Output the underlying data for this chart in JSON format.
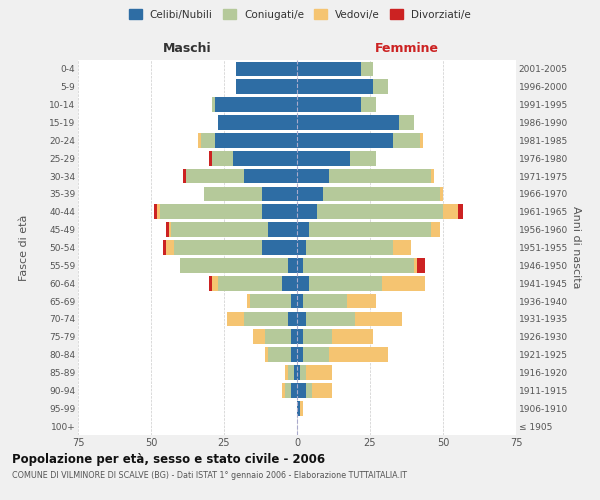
{
  "age_groups": [
    "100+",
    "95-99",
    "90-94",
    "85-89",
    "80-84",
    "75-79",
    "70-74",
    "65-69",
    "60-64",
    "55-59",
    "50-54",
    "45-49",
    "40-44",
    "35-39",
    "30-34",
    "25-29",
    "20-24",
    "15-19",
    "10-14",
    "5-9",
    "0-4"
  ],
  "birth_years": [
    "≤ 1905",
    "1906-1910",
    "1911-1915",
    "1916-1920",
    "1921-1925",
    "1926-1930",
    "1931-1935",
    "1936-1940",
    "1941-1945",
    "1946-1950",
    "1951-1955",
    "1956-1960",
    "1961-1965",
    "1966-1970",
    "1971-1975",
    "1976-1980",
    "1981-1985",
    "1986-1990",
    "1991-1995",
    "1996-2000",
    "2001-2005"
  ],
  "maschi": {
    "celibi": [
      0,
      0,
      2,
      1,
      2,
      2,
      3,
      2,
      5,
      3,
      12,
      10,
      12,
      12,
      18,
      22,
      28,
      27,
      28,
      21,
      21
    ],
    "coniugati": [
      0,
      0,
      2,
      2,
      8,
      9,
      15,
      14,
      22,
      37,
      30,
      33,
      35,
      20,
      20,
      7,
      5,
      0,
      1,
      0,
      0
    ],
    "vedovi": [
      0,
      0,
      1,
      1,
      1,
      4,
      6,
      1,
      2,
      0,
      3,
      1,
      1,
      0,
      0,
      0,
      1,
      0,
      0,
      0,
      0
    ],
    "divorziati": [
      0,
      0,
      0,
      0,
      0,
      0,
      0,
      0,
      1,
      0,
      1,
      1,
      1,
      0,
      1,
      1,
      0,
      0,
      0,
      0,
      0
    ]
  },
  "femmine": {
    "nubili": [
      0,
      1,
      3,
      1,
      2,
      2,
      3,
      2,
      4,
      2,
      3,
      4,
      7,
      9,
      11,
      18,
      33,
      35,
      22,
      26,
      22
    ],
    "coniugate": [
      0,
      0,
      2,
      2,
      9,
      10,
      17,
      15,
      25,
      38,
      30,
      42,
      43,
      40,
      35,
      9,
      9,
      5,
      5,
      5,
      4
    ],
    "vedove": [
      0,
      1,
      7,
      9,
      20,
      14,
      16,
      10,
      15,
      1,
      6,
      3,
      5,
      1,
      1,
      0,
      1,
      0,
      0,
      0,
      0
    ],
    "divorziate": [
      0,
      0,
      0,
      0,
      0,
      0,
      0,
      0,
      0,
      3,
      0,
      0,
      2,
      0,
      0,
      0,
      0,
      0,
      0,
      0,
      0
    ]
  },
  "colors": {
    "celibi": "#2e6da4",
    "coniugati": "#b5c99a",
    "vedovi": "#f5c471",
    "divorziati": "#cc2222"
  },
  "xlim": 75,
  "title": "Popolazione per età, sesso e stato civile - 2006",
  "subtitle": "COMUNE DI VILMINORE DI SCALVE (BG) - Dati ISTAT 1° gennaio 2006 - Elaborazione TUTTAITALIA.IT",
  "ylabel_left": "Fasce di età",
  "ylabel_right": "Anni di nascita",
  "xlabel_left": "Maschi",
  "xlabel_right": "Femmine",
  "bg_color": "#f0f0f0",
  "plot_bg": "#ffffff"
}
